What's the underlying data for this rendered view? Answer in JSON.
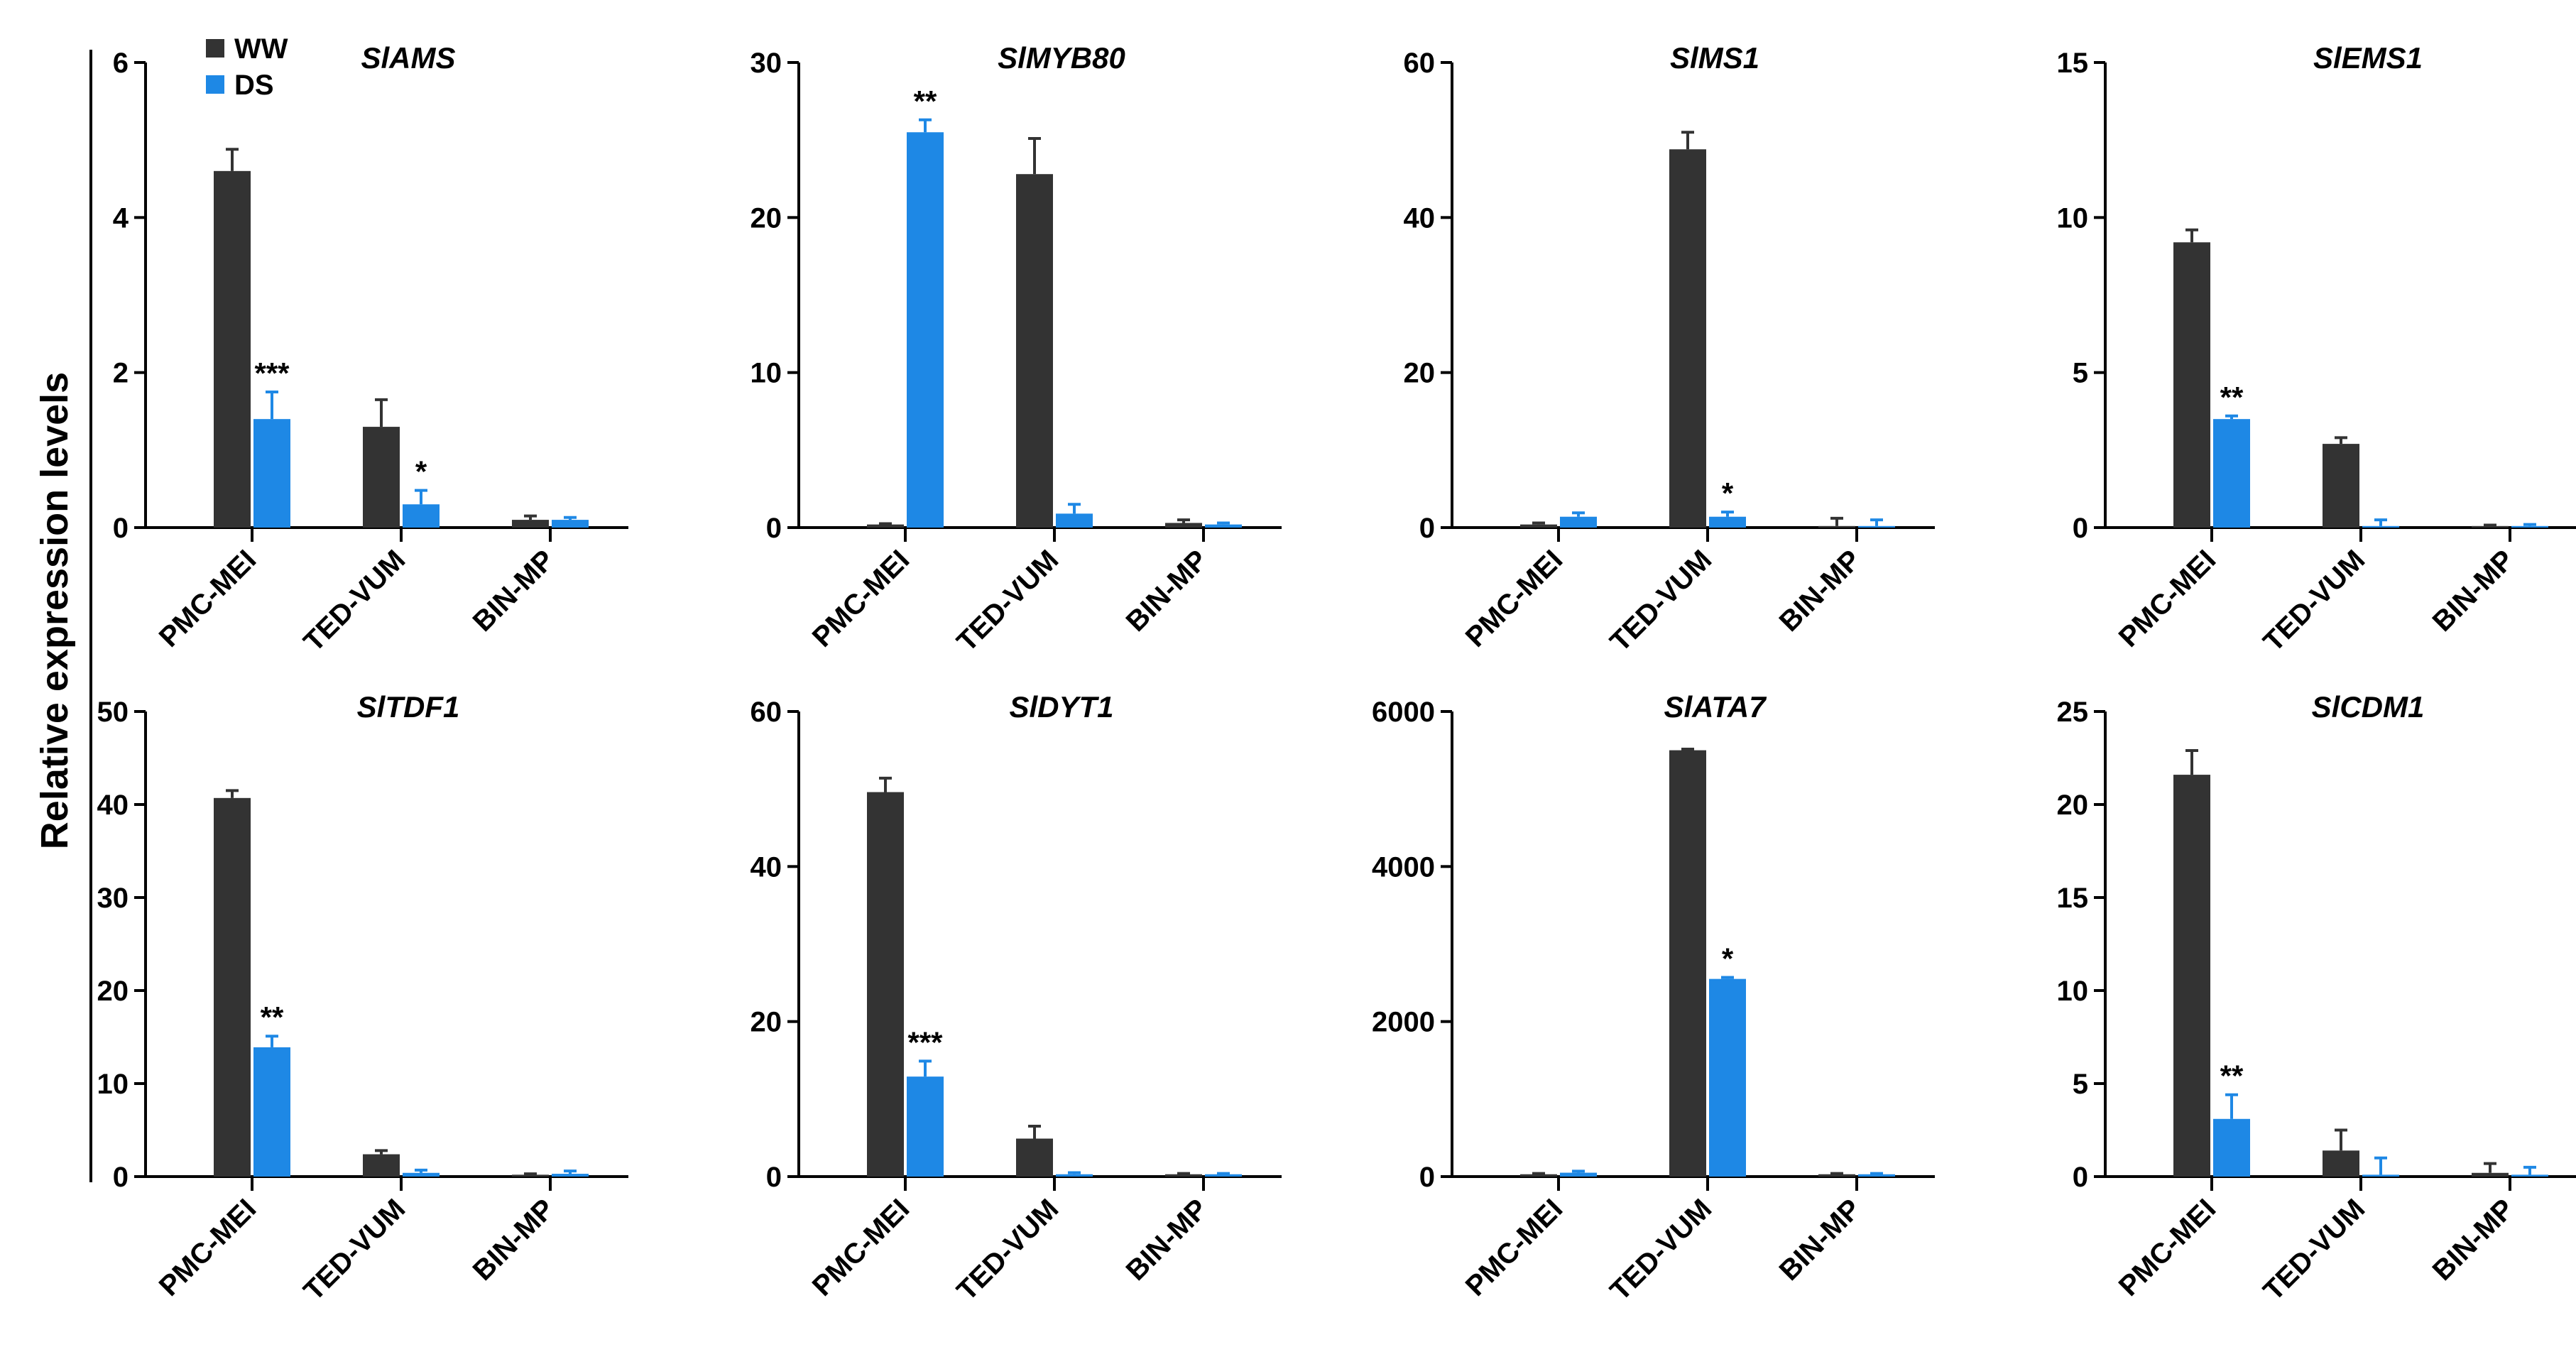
{
  "figure": {
    "ylabel": "Relative expression levels",
    "colors": {
      "WW": "#333333",
      "DS": "#1e88e5"
    },
    "legend": {
      "position": "top-left",
      "entries": [
        "WW",
        "DS"
      ]
    }
  },
  "chart_data": [
    {
      "type": "bar",
      "title": "SlAMS",
      "categories": [
        "PMC-MEI",
        "TED-VUM",
        "BIN-MP"
      ],
      "ylim": [
        0,
        6
      ],
      "yticks": [
        0,
        2,
        4,
        6
      ],
      "series": [
        {
          "name": "WW",
          "values": [
            4.6,
            1.3,
            0.1
          ],
          "errors": [
            0.28,
            0.35,
            0.05
          ]
        },
        {
          "name": "DS",
          "values": [
            1.4,
            0.3,
            0.1
          ],
          "errors": [
            0.35,
            0.18,
            0.03
          ]
        }
      ],
      "annotations": [
        {
          "category": 0,
          "series": "DS",
          "label": "***"
        },
        {
          "category": 1,
          "series": "DS",
          "label": "*"
        }
      ]
    },
    {
      "type": "bar",
      "title": "SlMYB80",
      "categories": [
        "PMC-MEI",
        "TED-VUM",
        "BIN-MP"
      ],
      "ylim": [
        0,
        30
      ],
      "yticks": [
        0,
        10,
        20,
        30
      ],
      "series": [
        {
          "name": "WW",
          "values": [
            0.2,
            22.8,
            0.3
          ],
          "errors": [
            0.05,
            2.3,
            0.2
          ]
        },
        {
          "name": "DS",
          "values": [
            25.5,
            0.9,
            0.2
          ],
          "errors": [
            0.8,
            0.6,
            0.1
          ]
        }
      ],
      "annotations": [
        {
          "category": 0,
          "series": "DS",
          "label": "**"
        }
      ]
    },
    {
      "type": "bar",
      "title": "SlMS1",
      "categories": [
        "PMC-MEI",
        "TED-VUM",
        "BIN-MP"
      ],
      "ylim": [
        0,
        60
      ],
      "yticks": [
        0,
        20,
        40,
        60
      ],
      "series": [
        {
          "name": "WW",
          "values": [
            0.4,
            48.8,
            0.2
          ],
          "errors": [
            0.2,
            2.2,
            1.0
          ]
        },
        {
          "name": "DS",
          "values": [
            1.4,
            1.4,
            0.2
          ],
          "errors": [
            0.5,
            0.6,
            0.8
          ]
        }
      ],
      "annotations": [
        {
          "category": 1,
          "series": "DS",
          "label": "*"
        }
      ]
    },
    {
      "type": "bar",
      "title": "SlEMS1",
      "categories": [
        "PMC-MEI",
        "TED-VUM",
        "BIN-MP"
      ],
      "ylim": [
        0,
        15
      ],
      "yticks": [
        0,
        5,
        10,
        15
      ],
      "series": [
        {
          "name": "WW",
          "values": [
            9.2,
            2.7,
            0.05
          ],
          "errors": [
            0.4,
            0.2,
            0.03
          ]
        },
        {
          "name": "DS",
          "values": [
            3.5,
            0.05,
            0.05
          ],
          "errors": [
            0.1,
            0.2,
            0.05
          ]
        }
      ],
      "annotations": [
        {
          "category": 0,
          "series": "DS",
          "label": "**"
        }
      ]
    },
    {
      "type": "bar",
      "title": "SlTDF1",
      "categories": [
        "PMC-MEI",
        "TED-VUM",
        "BIN-MP"
      ],
      "ylim": [
        0,
        50
      ],
      "yticks": [
        0,
        10,
        20,
        30,
        40,
        50
      ],
      "series": [
        {
          "name": "WW",
          "values": [
            40.7,
            2.4,
            0.2
          ],
          "errors": [
            0.8,
            0.4,
            0.1
          ]
        },
        {
          "name": "DS",
          "values": [
            13.9,
            0.4,
            0.3
          ],
          "errors": [
            1.2,
            0.3,
            0.3
          ]
        }
      ],
      "annotations": [
        {
          "category": 0,
          "series": "DS",
          "label": "**"
        }
      ]
    },
    {
      "type": "bar",
      "title": "SlDYT1",
      "categories": [
        "PMC-MEI",
        "TED-VUM",
        "BIN-MP"
      ],
      "ylim": [
        0,
        60
      ],
      "yticks": [
        0,
        20,
        40,
        60
      ],
      "series": [
        {
          "name": "WW",
          "values": [
            49.6,
            4.9,
            0.3
          ],
          "errors": [
            1.8,
            1.6,
            0.1
          ]
        },
        {
          "name": "DS",
          "values": [
            12.9,
            0.3,
            0.3
          ],
          "errors": [
            2.0,
            0.2,
            0.1
          ]
        }
      ],
      "annotations": [
        {
          "category": 0,
          "series": "DS",
          "label": "***"
        }
      ]
    },
    {
      "type": "bar",
      "title": "SlATA7",
      "categories": [
        "PMC-MEI",
        "TED-VUM",
        "BIN-MP"
      ],
      "ylim": [
        0,
        6000
      ],
      "yticks": [
        0,
        2000,
        4000,
        6000
      ],
      "series": [
        {
          "name": "WW",
          "values": [
            30,
            5500,
            30
          ],
          "errors": [
            10,
            15,
            10
          ]
        },
        {
          "name": "DS",
          "values": [
            50,
            2550,
            30
          ],
          "errors": [
            20,
            20,
            10
          ]
        }
      ],
      "annotations": [
        {
          "category": 1,
          "series": "DS",
          "label": "*"
        }
      ]
    },
    {
      "type": "bar",
      "title": "SlCDM1",
      "categories": [
        "PMC-MEI",
        "TED-VUM",
        "BIN-MP"
      ],
      "ylim": [
        0,
        25
      ],
      "yticks": [
        0,
        5,
        10,
        15,
        20,
        25
      ],
      "series": [
        {
          "name": "WW",
          "values": [
            21.6,
            1.4,
            0.2
          ],
          "errors": [
            1.3,
            1.1,
            0.5
          ]
        },
        {
          "name": "DS",
          "values": [
            3.1,
            0.1,
            0.1
          ],
          "errors": [
            1.3,
            0.9,
            0.4
          ]
        }
      ],
      "annotations": [
        {
          "category": 0,
          "series": "DS",
          "label": "**"
        }
      ]
    }
  ]
}
